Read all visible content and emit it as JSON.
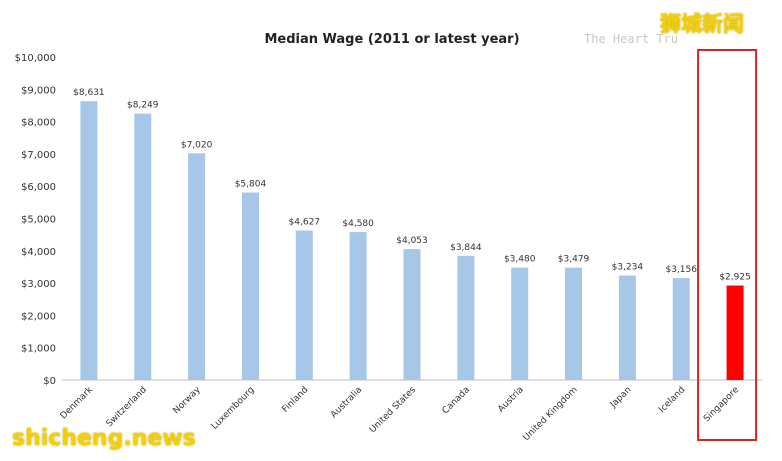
{
  "chart_data": {
    "type": "bar",
    "title": "Median Wage (2011 or latest year)",
    "categories": [
      "Denmark",
      "Switzerland",
      "Norway",
      "Luxembourg",
      "Finland",
      "Australia",
      "United States",
      "Canada",
      "Austria",
      "United Kingdom",
      "Japan",
      "Iceland",
      "Singapore"
    ],
    "values": [
      8631,
      8249,
      7020,
      5804,
      4627,
      4580,
      4053,
      3844,
      3480,
      3479,
      3234,
      3156,
      2925
    ],
    "data_labels": [
      "$8,631",
      "$8,249",
      "$7,020",
      "$5,804",
      "$4,627",
      "$4,580",
      "$4,053",
      "$3,844",
      "$3,480",
      "$3,479",
      "$3,234",
      "$3,156",
      "$2,925"
    ],
    "yticks": [
      "$0",
      "$1,000",
      "$2,000",
      "$3,000",
      "$4,000",
      "$5,000",
      "$6,000",
      "$7,000",
      "$8,000",
      "$9,000",
      "$10,000"
    ],
    "ylim": [
      0,
      10000
    ],
    "xlabel": "",
    "ylabel": "",
    "grid": false,
    "highlight_category": "Singapore",
    "colors": {
      "bar": "#a7c7e9",
      "highlight": "#ff0000",
      "highlight_box": "#e02020"
    }
  },
  "source_text": "The Heart Tru",
  "watermark_cn": "狮城新闻",
  "watermark_en": "shicheng.news"
}
